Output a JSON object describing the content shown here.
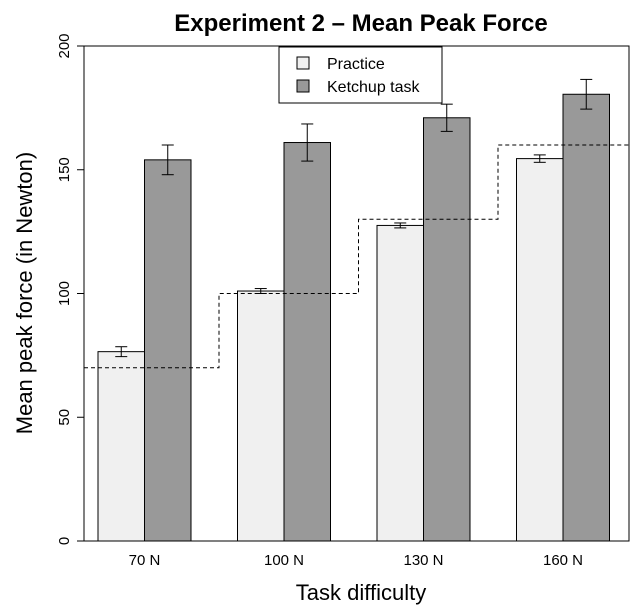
{
  "chart_data": {
    "type": "bar",
    "title": "Experiment 2 – Mean Peak Force",
    "xlabel": "Task difficulty",
    "ylabel": "Mean peak force (in Newton)",
    "categories": [
      "70 N",
      "100 N",
      "130 N",
      "160 N"
    ],
    "ylim": [
      0,
      200
    ],
    "yticks": [
      0,
      50,
      100,
      150,
      200
    ],
    "series": [
      {
        "name": "Practice",
        "color": "#f0f0f0",
        "values": [
          76.5,
          101.0,
          127.5,
          154.5
        ],
        "error": [
          2.0,
          1.0,
          1.0,
          1.5
        ]
      },
      {
        "name": "Ketchup task",
        "color": "#999999",
        "values": [
          154.0,
          161.0,
          171.0,
          180.5
        ],
        "error": [
          6.0,
          7.5,
          5.5,
          6.0
        ]
      }
    ],
    "reference_line": {
      "style": "dashed",
      "values": [
        70,
        100,
        130,
        160
      ]
    },
    "legend_position": "top-center",
    "grid": false
  }
}
